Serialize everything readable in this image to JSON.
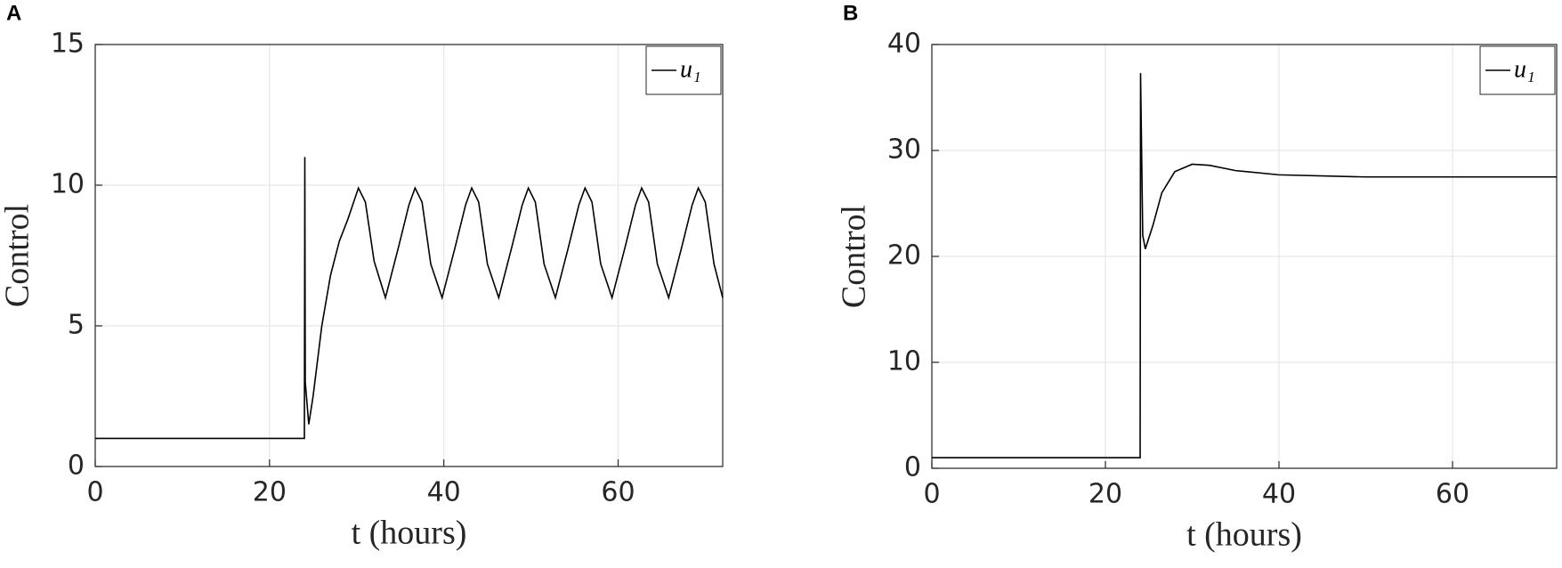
{
  "chart_data": [
    {
      "type": "line",
      "panel": "A",
      "xlabel": "t (hours)",
      "ylabel": "Control",
      "xlim": [
        0,
        72
      ],
      "xticks": [
        0,
        20,
        40,
        60
      ],
      "ylim": [
        0,
        15
      ],
      "yticks": [
        0,
        5,
        10,
        15
      ],
      "grid": true,
      "legend": "upper right",
      "x": [
        0,
        24,
        24.05,
        24.1,
        24.5,
        25,
        26,
        27,
        28,
        29,
        30.2,
        31,
        32,
        33.3,
        34.8,
        36,
        36.7,
        37.5,
        38.5,
        39.8,
        41.3,
        42.5,
        43.2,
        44,
        45,
        46.3,
        47.8,
        49,
        49.7,
        50.5,
        51.5,
        52.8,
        54.3,
        55.5,
        56.2,
        57,
        58,
        59.3,
        60.8,
        62,
        62.7,
        63.5,
        64.5,
        65.8,
        67.3,
        68.5,
        69.2,
        70,
        71,
        72
      ],
      "series": [
        {
          "name": "u₁",
          "color": "#000000",
          "values": [
            1,
            1,
            11,
            3,
            1.5,
            2.5,
            5,
            6.8,
            8,
            8.8,
            9.9,
            9.4,
            7.3,
            6,
            7.8,
            9.3,
            9.9,
            9.4,
            7.2,
            6,
            7.8,
            9.3,
            9.9,
            9.4,
            7.2,
            6,
            7.8,
            9.3,
            9.9,
            9.4,
            7.2,
            6,
            7.8,
            9.3,
            9.9,
            9.4,
            7.2,
            6,
            7.8,
            9.3,
            9.9,
            9.4,
            7.2,
            6,
            7.8,
            9.3,
            9.9,
            9.4,
            7.2,
            6
          ]
        }
      ]
    },
    {
      "type": "line",
      "panel": "B",
      "xlabel": "t (hours)",
      "ylabel": "Control",
      "xlim": [
        0,
        72
      ],
      "xticks": [
        0,
        20,
        40,
        60
      ],
      "ylim": [
        0,
        40
      ],
      "yticks": [
        0,
        10,
        20,
        30,
        40
      ],
      "grid": true,
      "legend": "upper right",
      "x": [
        0,
        24,
        24.05,
        24.3,
        24.6,
        25.5,
        26.5,
        28,
        30,
        32,
        35,
        40,
        50,
        72
      ],
      "series": [
        {
          "name": "u₁",
          "color": "#000000",
          "values": [
            1,
            1,
            37.3,
            22,
            20.7,
            23,
            26,
            28,
            28.7,
            28.6,
            28.1,
            27.7,
            27.5,
            27.5
          ]
        }
      ]
    }
  ]
}
